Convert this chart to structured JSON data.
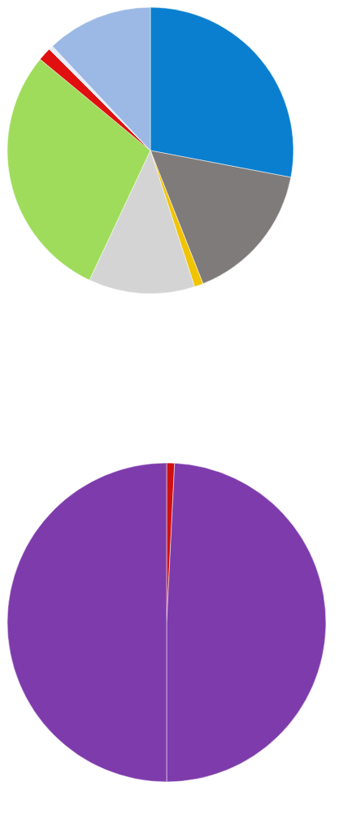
{
  "chart_data": [
    {
      "type": "pie",
      "categories": [
        null,
        null,
        null,
        null,
        null,
        null,
        null,
        null
      ],
      "values": [
        28,
        16,
        1,
        12,
        29,
        1.5,
        0.5,
        12
      ],
      "colors": [
        "#0a7fd0",
        "#7f7b7b",
        "#f0c400",
        "#d4d4d4",
        "#a0dc5c",
        "#e01010",
        "#e8eef8",
        "#9cb8e4"
      ]
    },
    {
      "type": "pie",
      "categories": [
        null,
        null,
        null
      ],
      "values": [
        0.8,
        49.2,
        50
      ],
      "colors": [
        "#d01010",
        "#7e3bab",
        "#7e3bab"
      ]
    }
  ]
}
